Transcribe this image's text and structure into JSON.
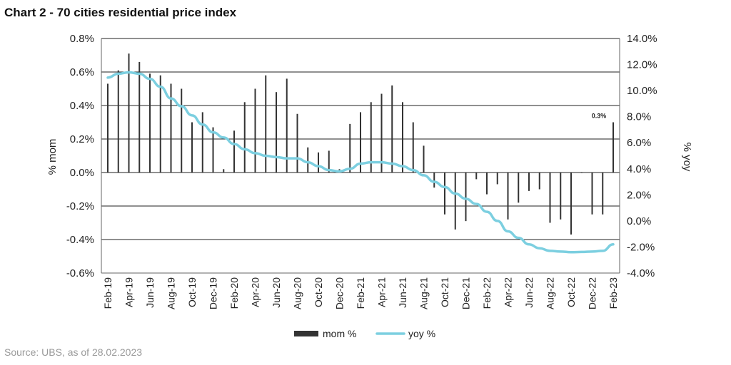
{
  "title": "Chart 2 - 70 cities residential price index",
  "source": "Source: UBS, as of 28.02.2023",
  "chart_data": {
    "type": "bar",
    "xlabel": "",
    "ylabel": "% mom",
    "y2label": "% yoy",
    "ylim": [
      -0.6,
      0.8
    ],
    "y2lim": [
      -4.0,
      14.0
    ],
    "yticks": [
      "0.8%",
      "0.6%",
      "0.4%",
      "0.2%",
      "0.0%",
      "-0.2%",
      "-0.4%",
      "-0.6%"
    ],
    "y2ticks": [
      "14.0%",
      "12.0%",
      "10.0%",
      "8.0%",
      "6.0%",
      "4.0%",
      "2.0%",
      "0.0%",
      "-2.0%",
      "-4.0%"
    ],
    "grid": "horizontal",
    "legend_position": "bottom",
    "categories": [
      "Feb-19",
      "Mar-19",
      "Apr-19",
      "May-19",
      "Jun-19",
      "Jul-19",
      "Aug-19",
      "Sep-19",
      "Oct-19",
      "Nov-19",
      "Dec-19",
      "Jan-20",
      "Feb-20",
      "Mar-20",
      "Apr-20",
      "May-20",
      "Jun-20",
      "Jul-20",
      "Aug-20",
      "Sep-20",
      "Oct-20",
      "Nov-20",
      "Dec-20",
      "Jan-21",
      "Feb-21",
      "Mar-21",
      "Apr-21",
      "May-21",
      "Jun-21",
      "Jul-21",
      "Aug-21",
      "Sep-21",
      "Oct-21",
      "Nov-21",
      "Dec-21",
      "Jan-22",
      "Feb-22",
      "Mar-22",
      "Apr-22",
      "May-22",
      "Jun-22",
      "Jul-22",
      "Aug-22",
      "Sep-22",
      "Oct-22",
      "Nov-22",
      "Dec-22",
      "Jan-23",
      "Feb-23"
    ],
    "xtick_labels": [
      "Feb-19",
      "Apr-19",
      "Jun-19",
      "Aug-19",
      "Oct-19",
      "Dec-19",
      "Feb-20",
      "Apr-20",
      "Jun-20",
      "Aug-20",
      "Oct-20",
      "Dec-20",
      "Feb-21",
      "Apr-21",
      "Jun-21",
      "Aug-21",
      "Oct-21",
      "Dec-21",
      "Feb-22",
      "Apr-22",
      "Jun-22",
      "Aug-22",
      "Oct-22",
      "Dec-22",
      "Feb-23"
    ],
    "series": [
      {
        "name": "mom %",
        "kind": "bar",
        "axis": "left",
        "color": "#333333",
        "values": [
          0.53,
          0.61,
          0.71,
          0.66,
          0.59,
          0.58,
          0.53,
          0.5,
          0.3,
          0.36,
          0.27,
          0.02,
          0.25,
          0.42,
          0.5,
          0.58,
          0.48,
          0.56,
          0.35,
          0.15,
          0.12,
          0.13,
          0.02,
          0.29,
          0.36,
          0.42,
          0.47,
          0.52,
          0.42,
          0.3,
          0.16,
          -0.09,
          -0.25,
          -0.34,
          -0.29,
          -0.04,
          -0.13,
          -0.07,
          -0.28,
          -0.18,
          -0.11,
          -0.1,
          -0.3,
          -0.28,
          -0.37,
          0.0,
          -0.25,
          -0.25,
          0.3
        ]
      },
      {
        "name": "yoy %",
        "kind": "line",
        "axis": "right",
        "color": "#7ccfe0",
        "values": [
          11.0,
          11.3,
          11.4,
          11.3,
          10.9,
          10.3,
          9.4,
          8.8,
          8.1,
          7.4,
          6.8,
          6.4,
          5.9,
          5.5,
          5.2,
          5.0,
          4.9,
          4.8,
          4.8,
          4.5,
          4.2,
          3.9,
          3.8,
          4.0,
          4.4,
          4.5,
          4.5,
          4.4,
          4.2,
          3.9,
          3.5,
          3.0,
          2.6,
          2.1,
          1.7,
          1.3,
          0.7,
          0.0,
          -0.8,
          -1.3,
          -1.8,
          -2.1,
          -2.3,
          -2.35,
          -2.4,
          -2.38,
          -2.35,
          -2.3,
          -1.8
        ]
      }
    ],
    "annotations": [
      {
        "text": "0.3%",
        "category": "Feb-23"
      }
    ]
  }
}
